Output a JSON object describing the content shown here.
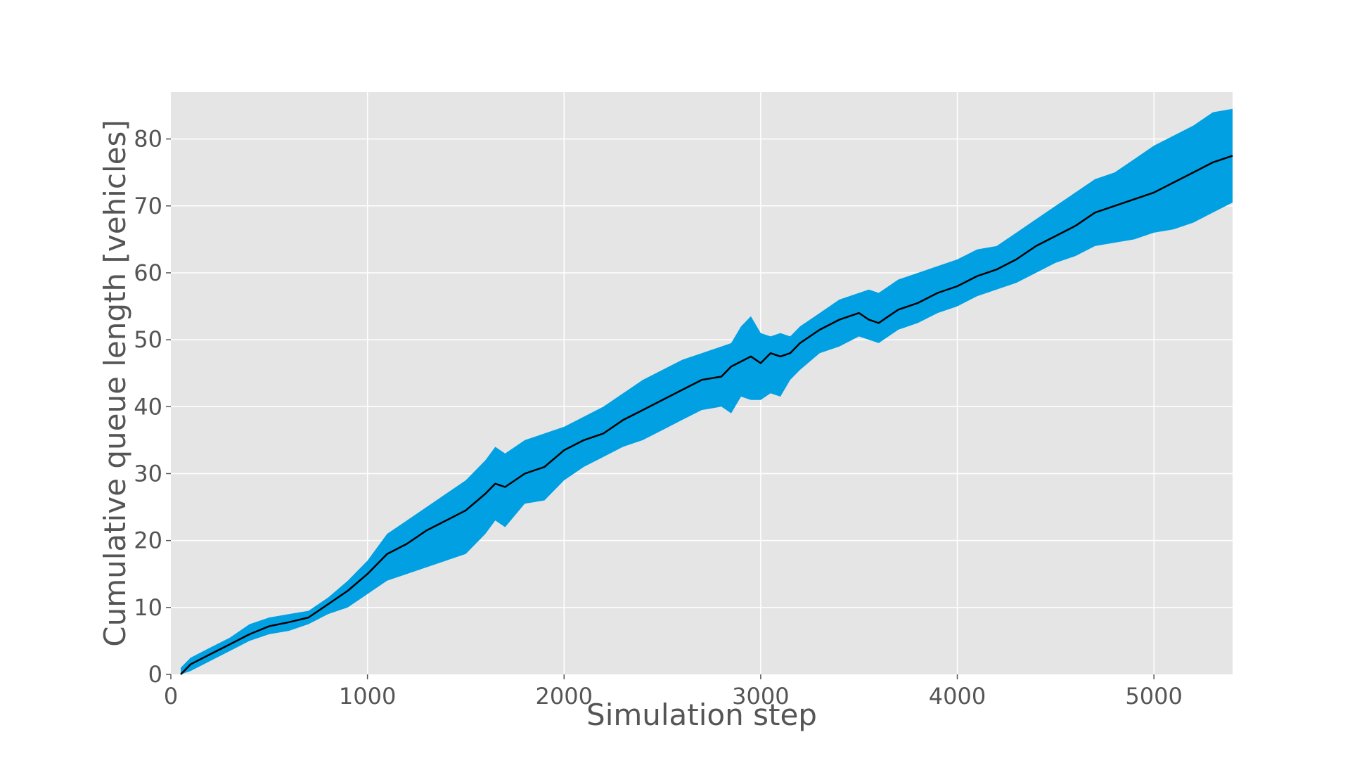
{
  "chart_data": {
    "type": "line",
    "title": "",
    "xlabel": "Simulation step",
    "ylabel": "Cumulative queue length [vehicles]",
    "xlim": [
      0,
      5400
    ],
    "ylim": [
      0,
      87
    ],
    "xticks": [
      0,
      1000,
      2000,
      3000,
      4000,
      5000
    ],
    "yticks": [
      0,
      10,
      20,
      30,
      40,
      50,
      60,
      70,
      80
    ],
    "grid": true,
    "legend": "none",
    "colors": {
      "background": "#e5e5e5",
      "grid": "#ffffff",
      "band": "#00a0e3",
      "line": "#000000",
      "text": "#555555"
    },
    "series": [
      {
        "kind": "mean",
        "x": [
          50,
          100,
          200,
          300,
          400,
          500,
          600,
          700,
          800,
          900,
          1000,
          1100,
          1200,
          1300,
          1400,
          1500,
          1600,
          1650,
          1700,
          1800,
          1900,
          2000,
          2100,
          2200,
          2300,
          2400,
          2500,
          2600,
          2700,
          2800,
          2850,
          2950,
          3000,
          3050,
          3100,
          3150,
          3200,
          3300,
          3400,
          3500,
          3550,
          3600,
          3700,
          3800,
          3900,
          4000,
          4100,
          4200,
          4300,
          4400,
          4500,
          4600,
          4700,
          4800,
          4900,
          5000,
          5100,
          5200,
          5300,
          5400
        ],
        "values": [
          0,
          1.5,
          3,
          4.5,
          6,
          7.2,
          7.8,
          8.5,
          10.5,
          12.5,
          15,
          18,
          19.5,
          21.5,
          23,
          24.5,
          27,
          28.5,
          28,
          30,
          31,
          33.5,
          35,
          36,
          38,
          39.5,
          41,
          42.5,
          44,
          44.5,
          46,
          47.5,
          46.5,
          48,
          47.5,
          48,
          49.5,
          51.5,
          53,
          54,
          53,
          52.5,
          54.5,
          55.5,
          57,
          58,
          59.5,
          60.5,
          62,
          64,
          65.5,
          67,
          69,
          70,
          71,
          72,
          73.5,
          75,
          76.5,
          77.5
        ]
      },
      {
        "kind": "upper",
        "x": [
          50,
          100,
          200,
          300,
          400,
          500,
          600,
          700,
          800,
          900,
          1000,
          1100,
          1200,
          1300,
          1400,
          1500,
          1600,
          1650,
          1700,
          1800,
          1900,
          2000,
          2100,
          2200,
          2300,
          2400,
          2500,
          2600,
          2700,
          2800,
          2850,
          2900,
          2950,
          3000,
          3050,
          3100,
          3150,
          3200,
          3300,
          3400,
          3500,
          3550,
          3600,
          3700,
          3800,
          3900,
          4000,
          4100,
          4200,
          4300,
          4400,
          4500,
          4600,
          4700,
          4800,
          4900,
          5000,
          5100,
          5200,
          5300,
          5400
        ],
        "values": [
          1,
          2.5,
          4,
          5.5,
          7.5,
          8.5,
          9,
          9.5,
          11.5,
          14,
          17,
          21,
          23,
          25,
          27,
          29,
          32,
          34,
          33,
          35,
          36,
          37,
          38.5,
          40,
          42,
          44,
          45.5,
          47,
          48,
          49,
          49.5,
          52,
          53.5,
          51,
          50.5,
          51,
          50.5,
          52,
          54,
          56,
          57,
          57.5,
          57,
          59,
          60,
          61,
          62,
          63.5,
          64,
          66,
          68,
          70,
          72,
          74,
          75,
          77,
          79,
          80.5,
          82,
          84,
          84.5
        ]
      },
      {
        "kind": "lower",
        "x": [
          50,
          100,
          200,
          300,
          400,
          500,
          600,
          700,
          800,
          900,
          1000,
          1100,
          1200,
          1300,
          1400,
          1500,
          1600,
          1650,
          1700,
          1800,
          1900,
          2000,
          2100,
          2200,
          2300,
          2400,
          2500,
          2600,
          2700,
          2800,
          2850,
          2900,
          2950,
          3000,
          3050,
          3100,
          3150,
          3200,
          3300,
          3400,
          3500,
          3550,
          3600,
          3700,
          3800,
          3900,
          4000,
          4100,
          4200,
          4300,
          4400,
          4500,
          4600,
          4700,
          4800,
          4900,
          5000,
          5100,
          5200,
          5300,
          5400
        ],
        "values": [
          0,
          0.5,
          2,
          3.5,
          5,
          6,
          6.5,
          7.5,
          9,
          10,
          12,
          14,
          15,
          16,
          17,
          18,
          21,
          23,
          22,
          25.5,
          26,
          29,
          31,
          32.5,
          34,
          35,
          36.5,
          38,
          39.5,
          40,
          39,
          41.5,
          41,
          41,
          42,
          41.5,
          44,
          45.5,
          48,
          49,
          50.5,
          50,
          49.5,
          51.5,
          52.5,
          54,
          55,
          56.5,
          57.5,
          58.5,
          60,
          61.5,
          62.5,
          64,
          64.5,
          65,
          66,
          66.5,
          67.5,
          69,
          70.5
        ]
      }
    ]
  }
}
